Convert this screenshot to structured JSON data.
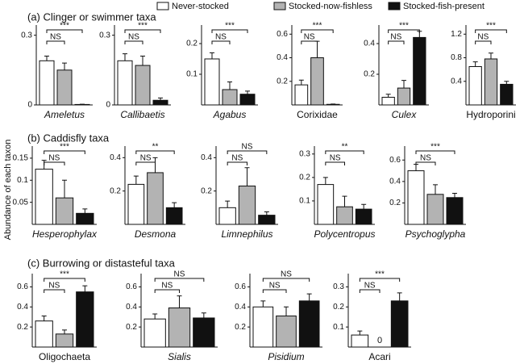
{
  "legend": [
    {
      "name": "Never-stocked",
      "color": "#ffffff"
    },
    {
      "name": "Stocked-now-fishless",
      "color": "#b3b3b3"
    },
    {
      "name": "Stocked-fish-present",
      "color": "#111111"
    }
  ],
  "sections": [
    "(a) Clinger or swimmer taxa",
    "(b) Caddisfly taxa",
    "(c) Burrowing or distasteful taxa"
  ],
  "y_axis_label": "Abundance of each taxon",
  "chart_data": [
    {
      "type": "bar",
      "title": "Ameletus",
      "italic": true,
      "values": [
        0.19,
        0.15,
        0.002
      ],
      "errors": [
        0.02,
        0.03,
        0.001
      ],
      "ylim": [
        0,
        0.33
      ],
      "yticks": [
        0,
        0.3
      ],
      "sig_wide": "***",
      "sig_narrow": "NS"
    },
    {
      "type": "bar",
      "title": "Callibaetis",
      "italic": true,
      "values": [
        0.19,
        0.17,
        0.02
      ],
      "errors": [
        0.03,
        0.04,
        0.01
      ],
      "ylim": [
        0,
        0.33
      ],
      "yticks": [
        0,
        0.3
      ],
      "sig_wide": "***",
      "sig_narrow": "NS"
    },
    {
      "type": "bar",
      "title": "Agabus",
      "italic": true,
      "values": [
        0.15,
        0.05,
        0.035
      ],
      "errors": [
        0.02,
        0.025,
        0.01
      ],
      "ylim": [
        0,
        0.25
      ],
      "yticks": [
        0.1,
        0.2
      ],
      "sig_wide": "***",
      "sig_narrow": "NS"
    },
    {
      "type": "bar",
      "title": "Corixidae",
      "italic": false,
      "values": [
        0.17,
        0.4,
        0.005
      ],
      "errors": [
        0.04,
        0.14,
        0.003
      ],
      "ylim": [
        0,
        0.65
      ],
      "yticks": [
        0.2,
        0.4,
        0.6
      ],
      "sig_wide": "***",
      "sig_narrow": "NS"
    },
    {
      "type": "bar",
      "title": "Culex",
      "italic": true,
      "values": [
        0.05,
        0.11,
        0.44
      ],
      "errors": [
        0.02,
        0.05,
        0.04
      ],
      "ylim": [
        0,
        0.5
      ],
      "yticks": [
        0.2,
        0.4
      ],
      "sig_wide": "***",
      "sig_narrow": "NS"
    },
    {
      "type": "bar",
      "title": "Hydroporini",
      "italic": false,
      "values": [
        0.65,
        0.78,
        0.35
      ],
      "errors": [
        0.08,
        0.1,
        0.05
      ],
      "ylim": [
        0,
        1.3
      ],
      "yticks": [
        0.4,
        0.8,
        1.2
      ],
      "sig_wide": "***",
      "sig_narrow": "NS"
    },
    {
      "type": "bar",
      "title": "Hesperophylax",
      "italic": true,
      "values": [
        0.125,
        0.06,
        0.025
      ],
      "errors": [
        0.02,
        0.04,
        0.01
      ],
      "ylim": [
        0,
        0.17
      ],
      "yticks": [
        0.05,
        0.1,
        0.15
      ],
      "sig_wide": "***",
      "sig_narrow": "NS"
    },
    {
      "type": "bar",
      "title": "Desmona",
      "italic": true,
      "values": [
        0.24,
        0.31,
        0.1
      ],
      "errors": [
        0.05,
        0.09,
        0.03
      ],
      "ylim": [
        0,
        0.45
      ],
      "yticks": [
        0.2,
        0.4
      ],
      "sig_wide": "**",
      "sig_narrow": "NS"
    },
    {
      "type": "bar",
      "title": "Limnephilus",
      "italic": true,
      "values": [
        0.1,
        0.23,
        0.055
      ],
      "errors": [
        0.04,
        0.11,
        0.02
      ],
      "ylim": [
        0,
        0.45
      ],
      "yticks": [
        0.2,
        0.4
      ],
      "sig_wide": "NS",
      "sig_narrow": "NS"
    },
    {
      "type": "bar",
      "title": "Polycentropus",
      "italic": true,
      "values": [
        0.17,
        0.075,
        0.065
      ],
      "errors": [
        0.03,
        0.045,
        0.02
      ],
      "ylim": [
        0,
        0.32
      ],
      "yticks": [
        0.1,
        0.2,
        0.3
      ],
      "sig_wide": "**",
      "sig_narrow": "NS"
    },
    {
      "type": "bar",
      "title": "Psychoglypha",
      "italic": true,
      "values": [
        0.5,
        0.28,
        0.25
      ],
      "errors": [
        0.06,
        0.09,
        0.04
      ],
      "ylim": [
        0,
        0.7
      ],
      "yticks": [
        0.2,
        0.4,
        0.6
      ],
      "sig_wide": "***",
      "sig_narrow": "NS"
    },
    {
      "type": "bar",
      "title": "Oligochaeta",
      "italic": false,
      "values": [
        0.26,
        0.13,
        0.55
      ],
      "errors": [
        0.05,
        0.04,
        0.06
      ],
      "ylim": [
        0,
        0.7
      ],
      "yticks": [
        0.2,
        0.4,
        0.6
      ],
      "sig_wide": "***",
      "sig_narrow": "NS"
    },
    {
      "type": "bar",
      "title": "Sialis",
      "italic": true,
      "values": [
        0.28,
        0.39,
        0.29
      ],
      "errors": [
        0.05,
        0.12,
        0.05
      ],
      "ylim": [
        0,
        0.7
      ],
      "yticks": [
        0.2,
        0.4,
        0.6
      ],
      "sig_wide": "NS",
      "sig_narrow": "NS"
    },
    {
      "type": "bar",
      "title": "Pisidium",
      "italic": true,
      "values": [
        0.4,
        0.31,
        0.46
      ],
      "errors": [
        0.06,
        0.09,
        0.07
      ],
      "ylim": [
        0,
        0.7
      ],
      "yticks": [
        0.2,
        0.4,
        0.6
      ],
      "sig_wide": "NS",
      "sig_narrow": "NS"
    },
    {
      "type": "bar",
      "title": "Acari",
      "italic": false,
      "values": [
        0.06,
        0,
        0.23
      ],
      "errors": [
        0.02,
        0,
        0.04
      ],
      "ylim": [
        0,
        0.35
      ],
      "yticks": [
        0.1,
        0.2,
        0.3
      ],
      "sig_wide": "***",
      "sig_narrow": "NS"
    }
  ]
}
